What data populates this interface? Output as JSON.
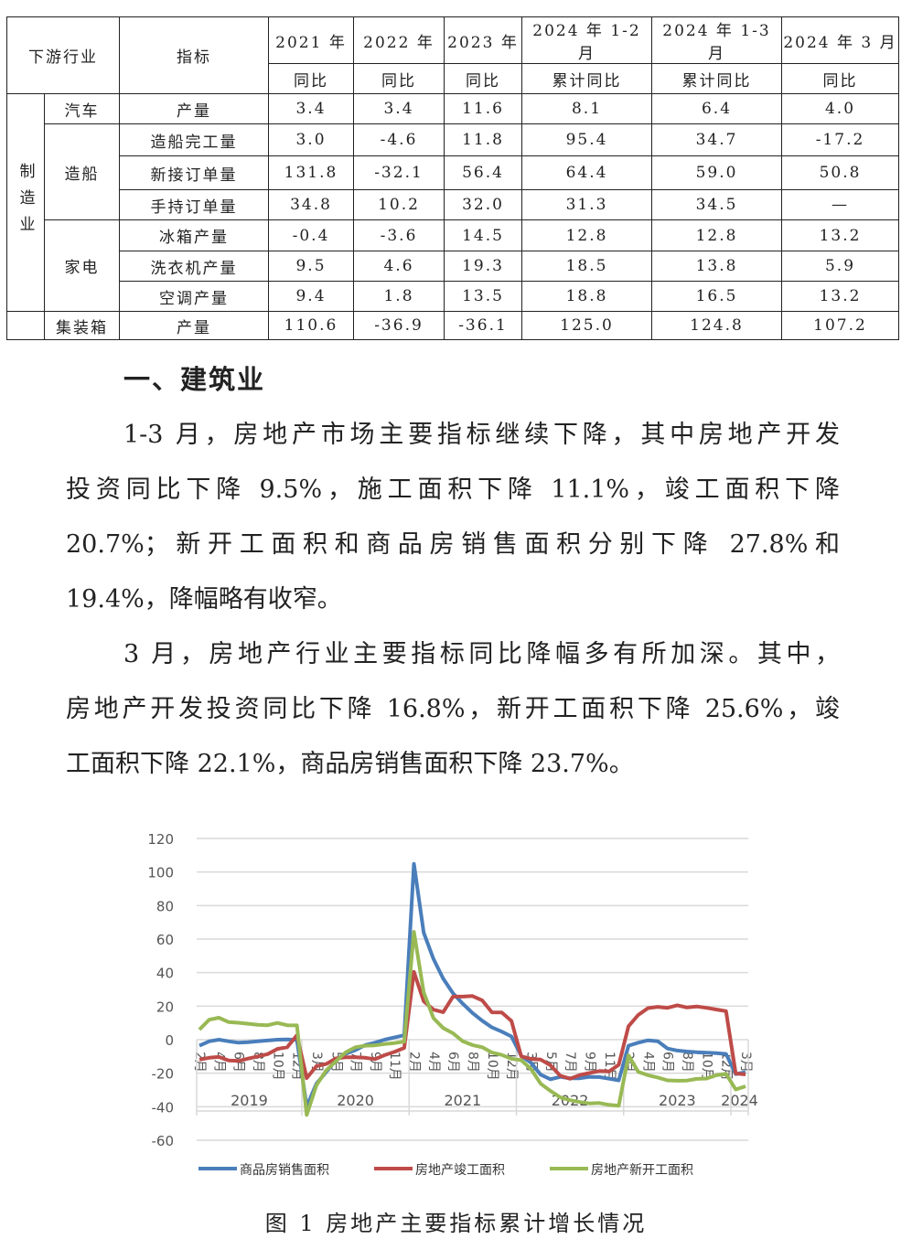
{
  "table": {
    "header": {
      "industry": "下游行业",
      "indicator": "指标",
      "periods": [
        "2021 年",
        "2022 年",
        "2023 年",
        "2024 年 1-2 月",
        "2024 年 1-3 月",
        "2024 年 3 月"
      ],
      "metrics": [
        "同比",
        "同比",
        "同比",
        "累计同比",
        "累计同比",
        "同比"
      ]
    },
    "sector": "制造业",
    "rows": [
      {
        "group": "汽车",
        "indicator": "产量",
        "values": [
          "3.4",
          "3.4",
          "11.6",
          "8.1",
          "6.4",
          "4.0"
        ]
      },
      {
        "group": "造船",
        "indicator": "造船完工量",
        "values": [
          "3.0",
          "-4.6",
          "11.8",
          "95.4",
          "34.7",
          "-17.2"
        ]
      },
      {
        "group": "",
        "indicator": "新接订单量",
        "values": [
          "131.8",
          "-32.1",
          "56.4",
          "64.4",
          "59.0",
          "50.8"
        ]
      },
      {
        "group": "",
        "indicator": "手持订单量",
        "values": [
          "34.8",
          "10.2",
          "32.0",
          "31.3",
          "34.5",
          "—"
        ]
      },
      {
        "group": "家电",
        "indicator": "冰箱产量",
        "values": [
          "-0.4",
          "-3.6",
          "14.5",
          "12.8",
          "12.8",
          "13.2"
        ]
      },
      {
        "group": "",
        "indicator": "洗衣机产量",
        "values": [
          "9.5",
          "4.6",
          "19.3",
          "18.5",
          "13.8",
          "5.9"
        ]
      },
      {
        "group": "",
        "indicator": "空调产量",
        "values": [
          "9.4",
          "1.8",
          "13.5",
          "18.8",
          "16.5",
          "13.2"
        ]
      },
      {
        "group": "集装箱",
        "indicator": "产量",
        "values": [
          "110.6",
          "-36.9",
          "-36.1",
          "125.0",
          "124.8",
          "107.2"
        ]
      }
    ]
  },
  "section_title": "一、建筑业",
  "paragraphs": [
    [
      "1-3 月，房地产市场主要指标继续下降，其中房地产开发",
      "投资同比下降 9.5%，施工面积下降 11.1%，竣工面积下降",
      "20.7%；新开工面积和商品房销售面积分别下降 27.8%和",
      "19.4%，降幅略有收窄。"
    ],
    [
      "3 月，房地产行业主要指标同比降幅多有所加深。其中，",
      "房地产开发投资同比下降 16.8%，新开工面积下降 25.6%，竣",
      "工面积下降 22.1%，商品房销售面积下降 23.7%。"
    ]
  ],
  "chart_data": {
    "type": "line",
    "title": "",
    "ylim": [
      -60,
      120
    ],
    "yticks": [
      120,
      100,
      80,
      60,
      40,
      20,
      0,
      -20,
      -40,
      -60
    ],
    "grid": true,
    "legend_position": "bottom",
    "years": [
      "2019",
      "2020",
      "2021",
      "2022",
      "2023",
      "2024"
    ],
    "months_per_year": [
      [
        2,
        3,
        4,
        5,
        6,
        7,
        8,
        9,
        10,
        11,
        12
      ],
      [
        2,
        3,
        4,
        5,
        6,
        7,
        8,
        9,
        10,
        11,
        12
      ],
      [
        2,
        3,
        4,
        5,
        6,
        7,
        8,
        9,
        10,
        11,
        12
      ],
      [
        2,
        3,
        4,
        5,
        6,
        7,
        8,
        9,
        10,
        11,
        12
      ],
      [
        2,
        3,
        4,
        5,
        6,
        7,
        8,
        9,
        10,
        11,
        12
      ],
      [
        2,
        3
      ]
    ],
    "month_suffix": "月",
    "series": [
      {
        "name": "商品房销售面积",
        "color": "#4a7ebb",
        "values": [
          -3.6,
          -1,
          0,
          -1,
          -1.8,
          -1.5,
          -1,
          -0.5,
          0,
          0.1,
          -0.1,
          -39.9,
          -26.3,
          -19.3,
          -12.3,
          -8.4,
          -6.2,
          -3.3,
          -1.8,
          0,
          1.3,
          2.6,
          104.9,
          63.8,
          48.1,
          36.4,
          27.7,
          21.5,
          15.9,
          11.3,
          7.3,
          4.8,
          1.9,
          -9.6,
          -13.8,
          -20.9,
          -23.6,
          -22.2,
          -23.1,
          -23,
          -22.2,
          -22.3,
          -23.3,
          -24.3,
          -3.6,
          -1.8,
          -0.4,
          -0.9,
          -5.3,
          -6.5,
          -7.1,
          -7.5,
          -7.8,
          -8,
          -8.5,
          -20.5,
          -19.4
        ]
      },
      {
        "name": "房地产竣工面积",
        "color": "#be4b48",
        "values": [
          -11.9,
          -10.8,
          -10.3,
          -12.4,
          -12.7,
          -11.3,
          -10,
          -8.6,
          -5.5,
          -4.5,
          2.6,
          -22.9,
          -15.8,
          -14.5,
          -11.2,
          -10.5,
          -10.5,
          -10.8,
          -11.6,
          -9.2,
          -7.3,
          -4.9,
          40.4,
          22.9,
          17.9,
          16.4,
          25.7,
          25.7,
          26,
          23.4,
          16.3,
          16.2,
          11.2,
          -9.9,
          -11.5,
          -11.9,
          -15.3,
          -21.5,
          -23.3,
          -21.1,
          -19.9,
          -18.7,
          -19,
          -15,
          8,
          14.7,
          18.8,
          19.6,
          19,
          20.5,
          19.2,
          19.8,
          19,
          18,
          17,
          -20.2,
          -20.7
        ]
      },
      {
        "name": "房地产新开工面积",
        "color": "#98b954",
        "values": [
          6,
          11.9,
          13.1,
          10.5,
          10.1,
          9.5,
          8.9,
          8.6,
          10,
          8.6,
          8.5,
          -44.9,
          -27.2,
          -18.4,
          -12.8,
          -7.6,
          -4.5,
          -3.6,
          -3.4,
          -2.6,
          -2,
          -1.2,
          64.3,
          28.2,
          12.8,
          6.9,
          3.8,
          -0.9,
          -3.2,
          -4.5,
          -7.7,
          -9.1,
          -11.4,
          -12.2,
          -17.5,
          -26.3,
          -30.6,
          -34.4,
          -36.1,
          -37.2,
          -38,
          -37.8,
          -38.9,
          -39.4,
          -9.4,
          -19.2,
          -21.2,
          -22.6,
          -24.3,
          -24.5,
          -24.4,
          -23.4,
          -23.2,
          -21.2,
          -20.4,
          -29.7,
          -27.8
        ]
      }
    ]
  },
  "caption": "图 1  房地产主要指标累计增长情况"
}
